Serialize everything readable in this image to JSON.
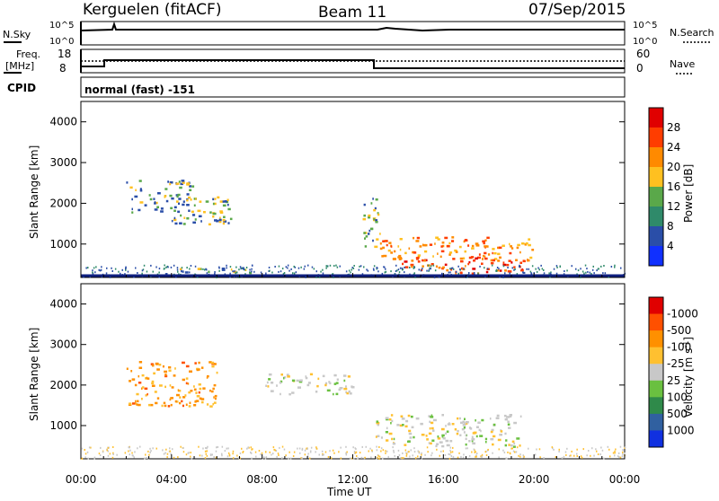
{
  "header": {
    "station": "Kerguelen (fitACF)",
    "beam": "Beam 11",
    "date": "07/Sep/2015"
  },
  "top_panels": {
    "nsky_label": "N.Sky",
    "nsky_hi": "10^5",
    "nsky_lo": "10^0",
    "nsearch_label": "N.Search",
    "nsearch_hi": "10^5",
    "nsearch_lo": "10^0",
    "freq_label": "Freq.",
    "freq_unit": "[MHz]",
    "freq_hi": "18",
    "freq_lo": "8",
    "nave_hi": "60",
    "nave_lo": "0",
    "nave_label": "Nave",
    "cpid_label": "CPID",
    "cpid_value": "normal (fast) -151"
  },
  "axes": {
    "xlabel": "Time UT",
    "xticks": [
      "00:00",
      "04:00",
      "08:00",
      "12:00",
      "16:00",
      "20:00",
      "00:00"
    ],
    "ylabel": "Slant Range [km]",
    "yticks": [
      "1000",
      "2000",
      "3000",
      "4000"
    ]
  },
  "colorbars": {
    "power": {
      "label": "Power [dB]",
      "ticks": [
        "4",
        "8",
        "12",
        "16",
        "20",
        "24",
        "28"
      ],
      "colors": [
        "#1030ff",
        "#2a4ea8",
        "#2f8a6a",
        "#5aa84a",
        "#ffc020",
        "#ff8a00",
        "#ff3d00",
        "#e00000"
      ]
    },
    "velocity": {
      "label": "Velocity [m s",
      "label_sup": "-1",
      "label_end": "]",
      "ticks": [
        "1000",
        "500",
        "100",
        "25",
        "-25",
        "-100",
        "-500",
        "-1000"
      ],
      "colors": [
        "#1030e0",
        "#3060a0",
        "#2f8a4a",
        "#6ac040",
        "#c8c8c8",
        "#ffc030",
        "#ff9000",
        "#ff5000",
        "#e00000"
      ]
    }
  },
  "chart_data": [
    {
      "type": "heatmap",
      "name": "power",
      "x_range_hours": [
        0,
        24
      ],
      "y_range_km": [
        180,
        4500
      ],
      "regions": [
        {
          "x": [
            2.0,
            5.0
          ],
          "y": [
            1800,
            2600
          ],
          "level": "mid"
        },
        {
          "x": [
            4.0,
            6.6
          ],
          "y": [
            1500,
            2200
          ],
          "level": "mid"
        },
        {
          "x": [
            12.4,
            13.2
          ],
          "y": [
            900,
            2200
          ],
          "level": "mid"
        },
        {
          "x": [
            13.2,
            20.0
          ],
          "y": [
            600,
            1200
          ],
          "level": "high"
        },
        {
          "x": [
            14.0,
            19.5
          ],
          "y": [
            300,
            700
          ],
          "level": "max"
        },
        {
          "x": [
            4.0,
            7.5
          ],
          "y": [
            300,
            450
          ],
          "level": "mid"
        }
      ]
    },
    {
      "type": "heatmap",
      "name": "velocity",
      "x_range_hours": [
        0,
        24
      ],
      "y_range_km": [
        180,
        4500
      ],
      "regions": [
        {
          "x": [
            2.0,
            6.0
          ],
          "y": [
            1500,
            2600
          ],
          "level": "-100"
        },
        {
          "x": [
            8.0,
            12.0
          ],
          "y": [
            1800,
            2300
          ],
          "level": "-25"
        },
        {
          "x": [
            13.0,
            19.5
          ],
          "y": [
            500,
            1300
          ],
          "level": "-25"
        }
      ]
    }
  ]
}
